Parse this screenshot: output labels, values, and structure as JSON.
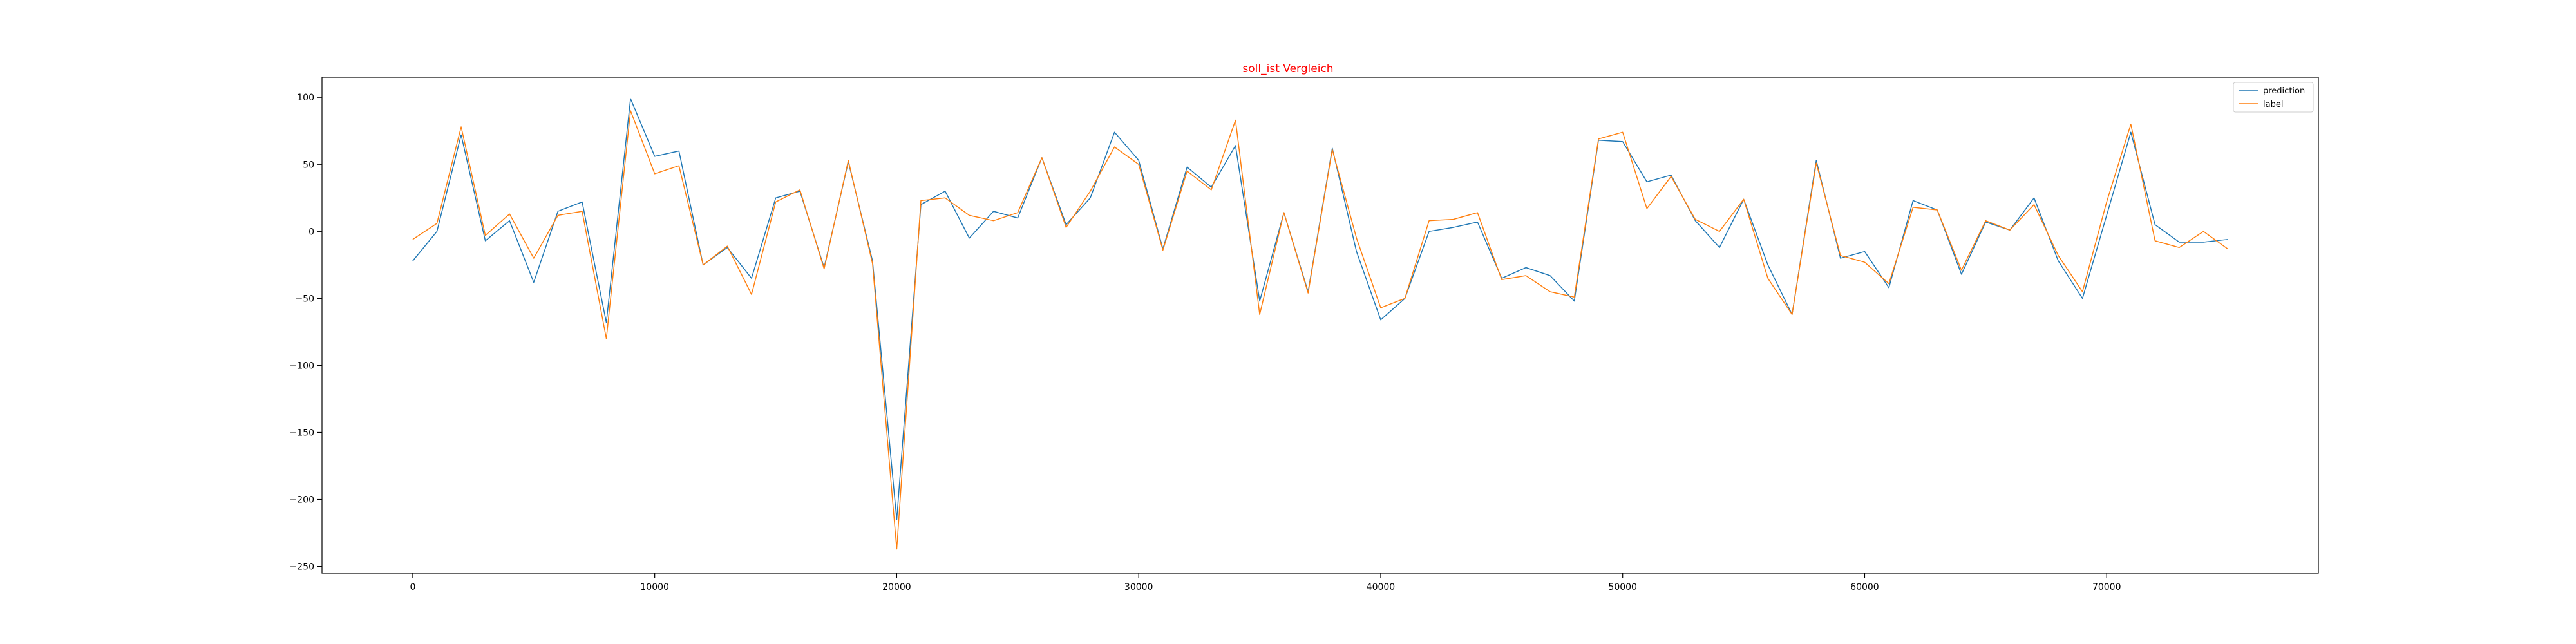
{
  "chart_data": {
    "type": "line",
    "title": "soll_ist Vergleich",
    "title_color": "#ff0000",
    "xlabel": "",
    "ylabel": "",
    "xlim": [
      -3750,
      78750
    ],
    "ylim": [
      -255,
      115
    ],
    "x_ticks": [
      0,
      10000,
      20000,
      30000,
      40000,
      50000,
      60000,
      70000
    ],
    "y_ticks": [
      100,
      50,
      0,
      -50,
      -100,
      -150,
      -200,
      -250
    ],
    "x_tick_labels": [
      "0",
      "10000",
      "20000",
      "30000",
      "40000",
      "50000",
      "60000",
      "70000"
    ],
    "y_tick_labels": [
      "100",
      "50",
      "0",
      "−50",
      "−100",
      "−150",
      "−200",
      "−250"
    ],
    "grid": false,
    "legend_position": "top-right",
    "x": [
      0,
      1000,
      2000,
      3000,
      4000,
      5000,
      6000,
      7000,
      8000,
      9000,
      10000,
      11000,
      12000,
      13000,
      14000,
      15000,
      16000,
      17000,
      18000,
      19000,
      20000,
      21000,
      22000,
      23000,
      24000,
      25000,
      26000,
      27000,
      28000,
      29000,
      30000,
      31000,
      32000,
      33000,
      34000,
      35000,
      36000,
      37000,
      38000,
      39000,
      40000,
      41000,
      42000,
      43000,
      44000,
      45000,
      46000,
      47000,
      48000,
      49000,
      50000,
      51000,
      52000,
      53000,
      54000,
      55000,
      56000,
      57000,
      58000,
      59000,
      60000,
      61000,
      62000,
      63000,
      64000,
      65000,
      66000,
      67000,
      68000,
      69000,
      70000,
      71000,
      72000,
      73000,
      74000,
      75000
    ],
    "series": [
      {
        "name": "prediction",
        "color": "#1f77b4",
        "values": [
          -22,
          0,
          72,
          -7,
          8,
          -38,
          15,
          22,
          -68,
          99,
          56,
          60,
          -25,
          -12,
          -35,
          25,
          30,
          -27,
          52,
          -22,
          -215,
          20,
          30,
          -5,
          15,
          10,
          55,
          5,
          25,
          74,
          53,
          -13,
          48,
          33,
          64,
          -52,
          14,
          -45,
          62,
          -15,
          -66,
          -50,
          0,
          3,
          7,
          -35,
          -27,
          -33,
          -52,
          68,
          67,
          37,
          42,
          8,
          -12,
          24,
          -25,
          -62,
          53,
          -20,
          -15,
          -42,
          23,
          16,
          -32,
          7,
          1,
          25,
          -22,
          -50,
          12,
          74,
          5,
          -8,
          -8,
          -6
        ],
        "values_note": ""
      },
      {
        "name": "label",
        "color": "#ff7f0e",
        "values": [
          -6,
          6,
          78,
          -3,
          13,
          -20,
          12,
          15,
          -80,
          90,
          43,
          49,
          -25,
          -11,
          -47,
          22,
          31,
          -28,
          53,
          -24,
          -237,
          23,
          25,
          12,
          8,
          14,
          55,
          3,
          30,
          63,
          50,
          -14,
          45,
          31,
          83,
          -62,
          14,
          -46,
          61,
          -5,
          -57,
          -50,
          8,
          9,
          14,
          -36,
          -33,
          -45,
          -49,
          69,
          74,
          17,
          41,
          9,
          0,
          24,
          -35,
          -62,
          51,
          -18,
          -23,
          -39,
          18,
          16,
          -29,
          8,
          1,
          20,
          -18,
          -45,
          22,
          80,
          -7,
          -12,
          0,
          -13
        ]
      }
    ]
  }
}
